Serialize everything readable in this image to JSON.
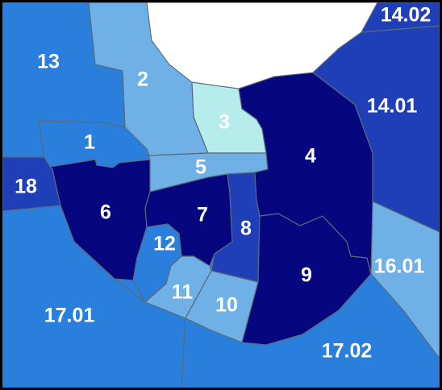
{
  "map": {
    "colors": {
      "darkest": "#06067f",
      "dark": "#1f3fb8",
      "medium": "#2a7fdc",
      "light": "#6fb0e6",
      "lightest": "#b6ecec",
      "water": "#ffffff",
      "border": "#5a6a7a"
    },
    "tracts": [
      {
        "id": "t13",
        "label": "13",
        "shade": "medium"
      },
      {
        "id": "t14_02",
        "label": "14.02",
        "shade": "dark"
      },
      {
        "id": "t14_01",
        "label": "14.01",
        "shade": "dark"
      },
      {
        "id": "t2",
        "label": "2",
        "shade": "light"
      },
      {
        "id": "t3",
        "label": "3",
        "shade": "lightest"
      },
      {
        "id": "t4",
        "label": "4",
        "shade": "darkest"
      },
      {
        "id": "t1",
        "label": "1",
        "shade": "medium"
      },
      {
        "id": "t5",
        "label": "5",
        "shade": "light"
      },
      {
        "id": "t18",
        "label": "18",
        "shade": "dark"
      },
      {
        "id": "t6",
        "label": "6",
        "shade": "darkest"
      },
      {
        "id": "t7",
        "label": "7",
        "shade": "darkest"
      },
      {
        "id": "t8",
        "label": "8",
        "shade": "dark"
      },
      {
        "id": "t9",
        "label": "9",
        "shade": "darkest"
      },
      {
        "id": "t12",
        "label": "12",
        "shade": "medium"
      },
      {
        "id": "t11",
        "label": "11",
        "shade": "light"
      },
      {
        "id": "t10",
        "label": "10",
        "shade": "light"
      },
      {
        "id": "t16_01",
        "label": "16.01",
        "shade": "light"
      },
      {
        "id": "t17_01",
        "label": "17.01",
        "shade": "medium"
      },
      {
        "id": "t17_02",
        "label": "17.02",
        "shade": "medium"
      }
    ]
  }
}
